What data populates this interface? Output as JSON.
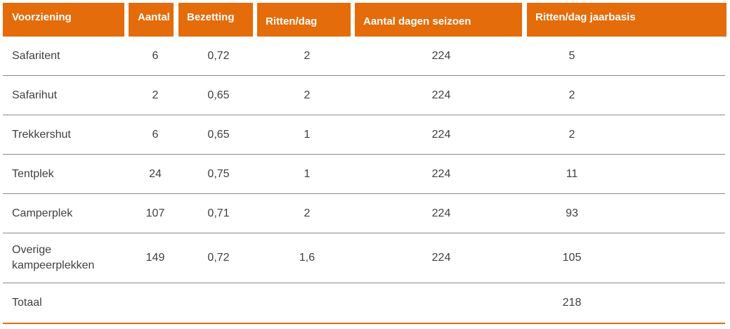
{
  "table": {
    "headers": {
      "voorziening": "Voorziening",
      "aantal": "Aantal",
      "bezetting": "Bezetting",
      "ritten_dag": "Ritten/dag",
      "aantal_dagen_seizoen": "Aantal dagen seizoen",
      "ritten_dag_jaarbasis": "Ritten/dag jaarbasis"
    },
    "rows": [
      {
        "voorziening": "Safaritent",
        "aantal": "6",
        "bezetting": "0,72",
        "ritten_dag": "2",
        "dagen": "224",
        "jaarbasis": "5"
      },
      {
        "voorziening": "Safarihut",
        "aantal": "2",
        "bezetting": "0,65",
        "ritten_dag": "2",
        "dagen": "224",
        "jaarbasis": "2"
      },
      {
        "voorziening": "Trekkershut",
        "aantal": "6",
        "bezetting": "0,65",
        "ritten_dag": "1",
        "dagen": "224",
        "jaarbasis": "2"
      },
      {
        "voorziening": "Tentplek",
        "aantal": "24",
        "bezetting": "0,75",
        "ritten_dag": "1",
        "dagen": "224",
        "jaarbasis": "11"
      },
      {
        "voorziening": "Camperplek",
        "aantal": "107",
        "bezetting": "0,71",
        "ritten_dag": "2",
        "dagen": "224",
        "jaarbasis": "93"
      },
      {
        "voorziening": "Overige kampeerplekken",
        "aantal": "149",
        "bezetting": "0,72",
        "ritten_dag": "1,6",
        "dagen": "224",
        "jaarbasis": "105"
      }
    ],
    "total": {
      "voorziening": "Totaal",
      "aantal": "",
      "bezetting": "",
      "ritten_dag": "",
      "dagen": "",
      "jaarbasis": "218"
    }
  },
  "colors": {
    "header_bg": "#e46c0a",
    "header_text": "#ffffff",
    "body_text": "#404040",
    "row_divider": "#8a8a8a"
  }
}
